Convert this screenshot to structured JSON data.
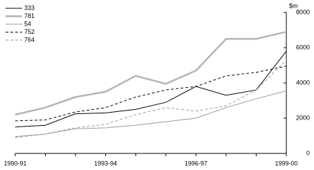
{
  "chart_data": {
    "type": "line",
    "y_label": "$m",
    "categories": [
      "1990-91",
      null,
      null,
      "1993-94",
      null,
      null,
      "1996-97",
      null,
      null,
      "1999-00"
    ],
    "series": [
      {
        "name": "333",
        "color": "#000000",
        "width": 1,
        "dash": false,
        "values": [
          1500,
          1600,
          2250,
          2300,
          2500,
          2900,
          3800,
          3300,
          3600,
          5800
        ]
      },
      {
        "name": "781",
        "color": "#b4b4b4",
        "width": 2.5,
        "dash": false,
        "values": [
          2200,
          2600,
          3200,
          3500,
          4400,
          3950,
          4700,
          6500,
          6500,
          6900
        ]
      },
      {
        "name": "54",
        "color": "#9a9a9a",
        "width": 1,
        "dash": false,
        "values": [
          950,
          1100,
          1400,
          1450,
          1600,
          1800,
          2000,
          2600,
          3100,
          3550
        ]
      },
      {
        "name": "752",
        "color": "#000000",
        "width": 1,
        "dash": true,
        "values": [
          1850,
          1900,
          2350,
          2600,
          3200,
          3600,
          3800,
          4400,
          4600,
          4950
        ]
      },
      {
        "name": "764",
        "color": "#9a9a9a",
        "width": 1,
        "dash": true,
        "values": [
          900,
          1100,
          1450,
          1650,
          2200,
          2600,
          2400,
          2700,
          3600,
          5300
        ]
      }
    ],
    "ylim": [
      0,
      8000
    ],
    "yticks": [
      0,
      2000,
      4000,
      6000,
      8000
    ],
    "legend": "top-left"
  }
}
